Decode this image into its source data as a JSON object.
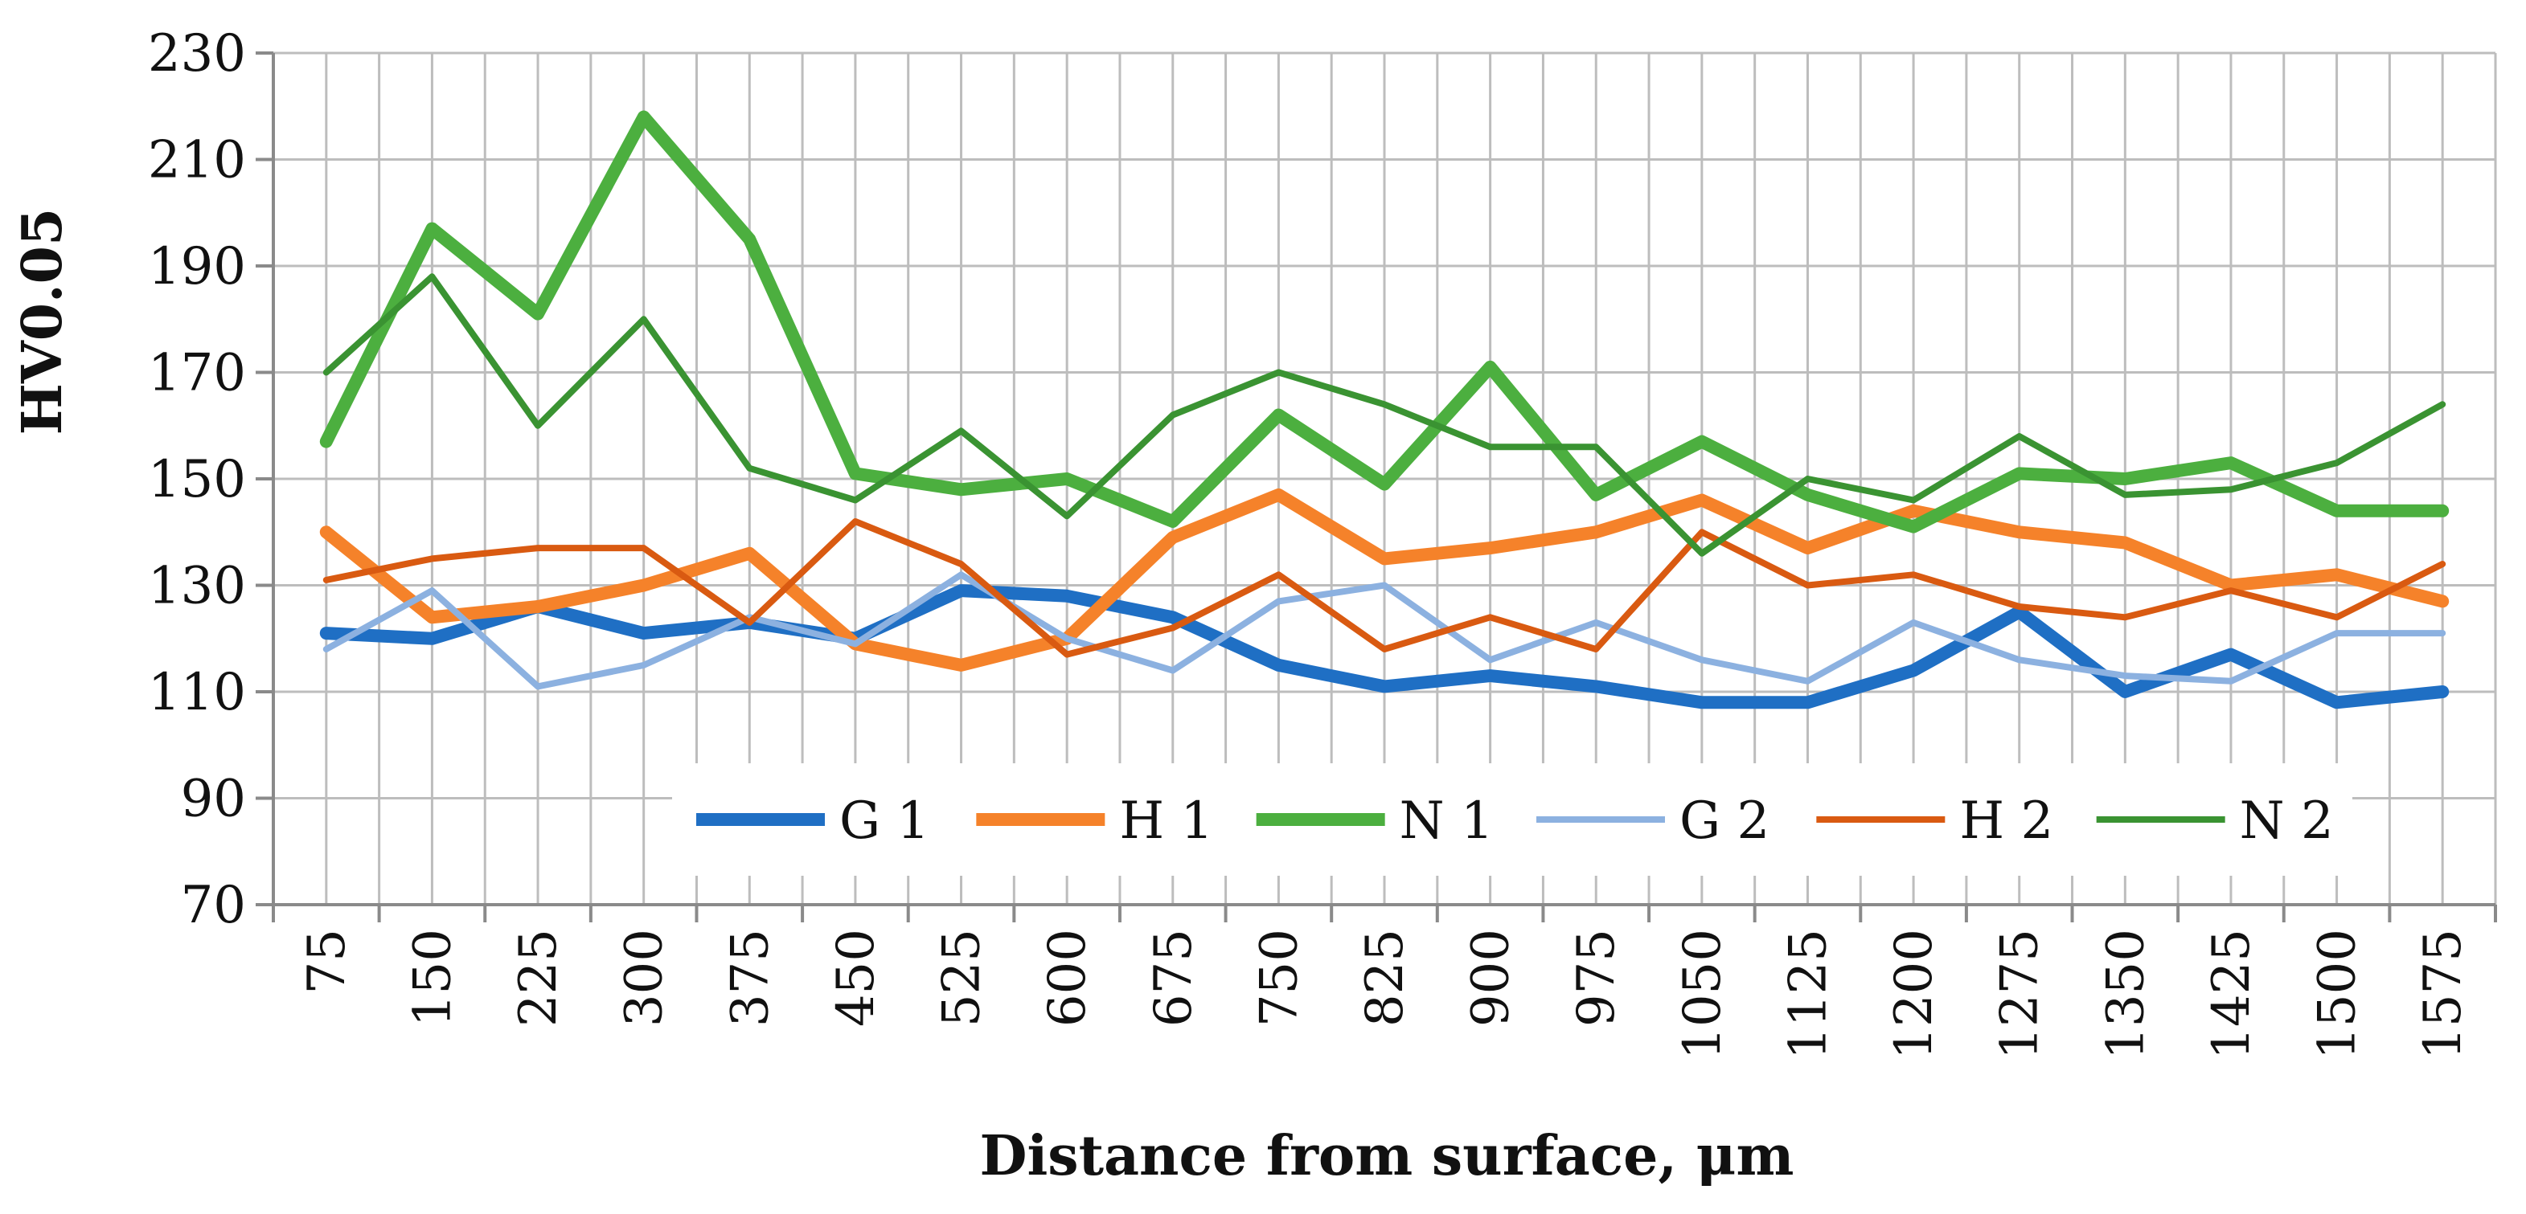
{
  "chart_data": {
    "type": "line",
    "title": "",
    "xlabel": "Distance from surface, μm",
    "ylabel": "HV0.05",
    "ylim": [
      70,
      230
    ],
    "yticks": [
      70,
      90,
      110,
      130,
      150,
      170,
      190,
      210,
      230
    ],
    "grid": "on",
    "legend_position": "bottom-inside",
    "categories": [
      "75",
      "150",
      "225",
      "300",
      "375",
      "450",
      "525",
      "600",
      "675",
      "750",
      "825",
      "900",
      "975",
      "1050",
      "1125",
      "1200",
      "1275",
      "1350",
      "1425",
      "1500",
      "1575"
    ],
    "series": [
      {
        "name": "G 1",
        "color": "#1f6fc4",
        "weight": "thick",
        "values": [
          121,
          120,
          126,
          121,
          123,
          120,
          129,
          128,
          124,
          115,
          111,
          113,
          111,
          108,
          108,
          114,
          125,
          110,
          117,
          108,
          110
        ]
      },
      {
        "name": "H 1",
        "color": "#f5822a",
        "weight": "thick",
        "values": [
          140,
          124,
          126,
          130,
          136,
          119,
          115,
          120,
          139,
          147,
          135,
          137,
          140,
          146,
          137,
          144,
          140,
          138,
          130,
          132,
          127
        ]
      },
      {
        "name": "N 1",
        "color": "#4caf3f",
        "weight": "thick",
        "values": [
          157,
          197,
          181,
          218,
          195,
          151,
          148,
          150,
          142,
          162,
          149,
          171,
          147,
          157,
          147,
          141,
          151,
          150,
          153,
          144,
          144
        ]
      },
      {
        "name": "G 2",
        "color": "#8cb1e0",
        "weight": "thin",
        "values": [
          118,
          129,
          111,
          115,
          124,
          119,
          132,
          120,
          114,
          127,
          130,
          116,
          123,
          116,
          112,
          123,
          116,
          113,
          112,
          121,
          121
        ]
      },
      {
        "name": "H 2",
        "color": "#d95a11",
        "weight": "thin",
        "values": [
          131,
          135,
          137,
          137,
          123,
          142,
          134,
          117,
          122,
          132,
          118,
          124,
          118,
          140,
          130,
          132,
          126,
          124,
          129,
          124,
          134
        ]
      },
      {
        "name": "N 2",
        "color": "#3a9332",
        "weight": "thin",
        "values": [
          170,
          188,
          160,
          180,
          152,
          146,
          159,
          143,
          162,
          170,
          164,
          156,
          156,
          136,
          150,
          146,
          158,
          147,
          148,
          153,
          164
        ]
      }
    ]
  }
}
